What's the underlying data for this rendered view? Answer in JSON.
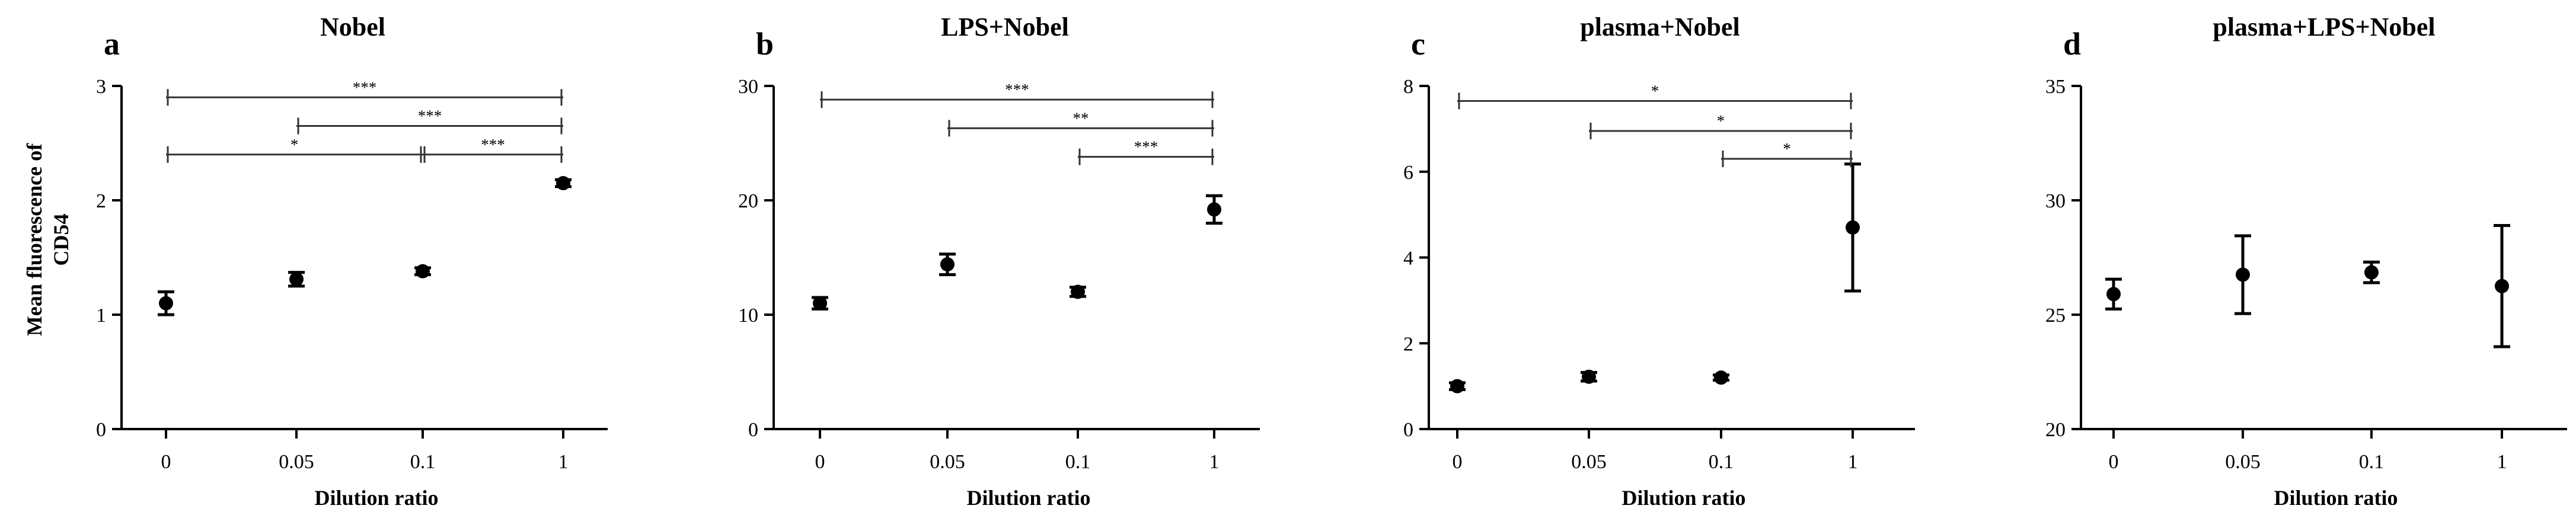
{
  "chart_data": [
    {
      "type": "scatter",
      "panel_label": "a",
      "title": "Nobel",
      "xlabel": "Dilution ratio",
      "ylabel_lines": [
        "Mean fluorescence of",
        "CD54"
      ],
      "categories": [
        "0",
        "0.05",
        "0.1",
        "1"
      ],
      "ylim": [
        0,
        3
      ],
      "yticks": [
        0,
        1,
        2,
        3
      ],
      "ytick_labels": [
        "0",
        "1",
        "2",
        "3"
      ],
      "grid": false,
      "series": [
        {
          "values": [
            1.1,
            1.31,
            1.38,
            2.15
          ],
          "errors": [
            0.1,
            0.06,
            0.03,
            0.03
          ]
        }
      ],
      "significance": [
        {
          "from": 0,
          "to": 3,
          "y": 2.9,
          "label": "***"
        },
        {
          "from": 1,
          "to": 3,
          "y": 2.65,
          "label": "***"
        },
        {
          "from": 0,
          "to": 2,
          "y": 2.4,
          "label": "*"
        },
        {
          "from": 2,
          "to": 3,
          "y": 2.4,
          "label": "***"
        }
      ]
    },
    {
      "type": "scatter",
      "panel_label": "b",
      "title": "LPS+Nobel",
      "xlabel": "Dilution ratio",
      "ylabel_lines": [],
      "categories": [
        "0",
        "0.05",
        "0.1",
        "1"
      ],
      "ylim": [
        0,
        30
      ],
      "yticks": [
        0,
        10,
        20,
        30
      ],
      "ytick_labels": [
        "0",
        "10",
        "20",
        "30"
      ],
      "grid": false,
      "series": [
        {
          "values": [
            11.0,
            14.4,
            12.0,
            19.2
          ],
          "errors": [
            0.5,
            0.9,
            0.4,
            1.2
          ]
        }
      ],
      "significance": [
        {
          "from": 0,
          "to": 3,
          "y": 28.8,
          "label": "***"
        },
        {
          "from": 1,
          "to": 3,
          "y": 26.3,
          "label": "**"
        },
        {
          "from": 2,
          "to": 3,
          "y": 23.8,
          "label": "***"
        }
      ]
    },
    {
      "type": "scatter",
      "panel_label": "c",
      "title": "plasma+Nobel",
      "xlabel": "Dilution ratio",
      "ylabel_lines": [],
      "categories": [
        "0",
        "0.05",
        "0.1",
        "1"
      ],
      "ylim": [
        0,
        8
      ],
      "yticks": [
        0,
        2,
        4,
        6,
        8
      ],
      "ytick_labels": [
        "0",
        "2",
        "4",
        "6",
        "8"
      ],
      "grid": false,
      "series": [
        {
          "values": [
            1.0,
            1.22,
            1.2,
            4.7
          ],
          "errors": [
            0.08,
            0.1,
            0.06,
            1.48
          ]
        }
      ],
      "significance": [
        {
          "from": 0,
          "to": 3,
          "y": 7.65,
          "label": "*"
        },
        {
          "from": 1,
          "to": 3,
          "y": 6.95,
          "label": "*"
        },
        {
          "from": 2,
          "to": 3,
          "y": 6.3,
          "label": "*"
        }
      ]
    },
    {
      "type": "scatter",
      "panel_label": "d",
      "title": "plasma+LPS+Nobel",
      "xlabel": "Dilution ratio",
      "ylabel_lines": [],
      "categories": [
        "0",
        "0.05",
        "0.1",
        "1"
      ],
      "ylim": [
        20,
        35
      ],
      "yticks": [
        20,
        25,
        30,
        35
      ],
      "ytick_labels": [
        "20",
        "25",
        "30",
        "35"
      ],
      "grid": false,
      "series": [
        {
          "values": [
            25.9,
            26.75,
            26.85,
            26.25
          ],
          "errors": [
            0.65,
            1.7,
            0.45,
            2.65
          ]
        }
      ],
      "significance": []
    }
  ]
}
